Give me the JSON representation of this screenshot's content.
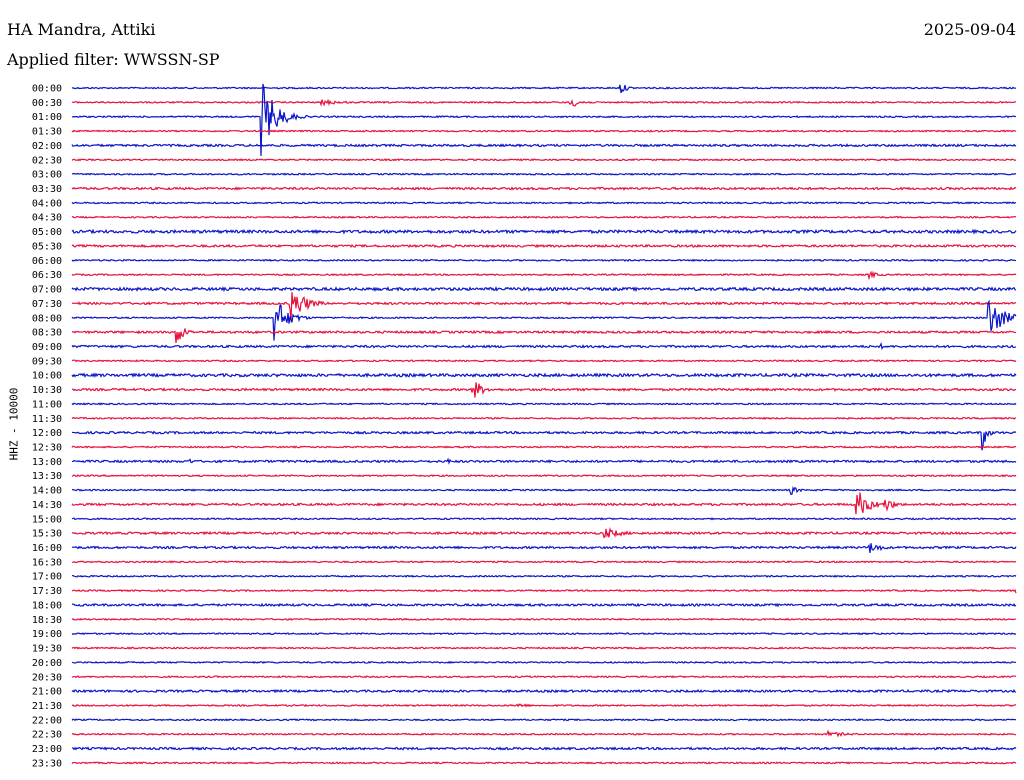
{
  "header": {
    "station": "HA Mandra, Attiki",
    "date": "2025-09-04",
    "filter": "Applied filter: WWSSN-SP"
  },
  "channel_label": "HHZ - 10000",
  "chart_data": {
    "type": "line",
    "title": "",
    "xlabel": "",
    "ylabel": "HHZ - 10000",
    "grid": false,
    "legend": "none",
    "row_labels": [
      "00:00",
      "00:30",
      "01:00",
      "01:30",
      "02:00",
      "02:30",
      "03:00",
      "03:30",
      "04:00",
      "04:30",
      "05:00",
      "05:30",
      "06:00",
      "06:30",
      "07:00",
      "07:30",
      "08:00",
      "08:30",
      "09:00",
      "09:30",
      "10:00",
      "10:30",
      "11:00",
      "11:30",
      "12:00",
      "12:30",
      "13:00",
      "13:30",
      "14:00",
      "14:30",
      "15:00",
      "15:30",
      "16:00",
      "16:30",
      "17:00",
      "17:30",
      "18:00",
      "18:30",
      "19:00",
      "19:30",
      "20:00",
      "20:30",
      "21:00",
      "21:30",
      "22:00",
      "22:30",
      "23:00",
      "23:30"
    ],
    "row_minutes": 30,
    "series_colors": [
      "#0a14c8",
      "#e8103c"
    ],
    "noise_level": [
      1,
      1,
      0,
      0,
      2,
      1,
      0,
      2,
      1,
      1,
      3,
      2,
      1,
      1,
      3,
      2,
      1,
      2,
      2,
      1,
      3,
      2,
      1,
      1,
      2,
      1,
      2,
      1,
      1,
      2,
      1,
      2,
      2,
      1,
      1,
      1,
      2,
      1,
      1,
      1,
      1,
      1,
      2,
      1,
      1,
      1,
      2,
      1
    ],
    "events": [
      {
        "row": 0,
        "minute": 17.4,
        "amplitude": 8,
        "duration_min": 0.4
      },
      {
        "row": 1,
        "minute": 7.9,
        "amplitude": 3,
        "duration_min": 1.6
      },
      {
        "row": 1,
        "minute": 15.8,
        "amplitude": 6,
        "duration_min": 0.8
      },
      {
        "row": 2,
        "minute": 6.0,
        "amplitude": 40,
        "duration_min": 0.9
      },
      {
        "row": 16,
        "minute": 6.4,
        "amplitude": 26,
        "duration_min": 0.8
      },
      {
        "row": 15,
        "minute": 6.9,
        "amplitude": 22,
        "duration_min": 0.9
      },
      {
        "row": 17,
        "minute": 3.3,
        "amplitude": 15,
        "duration_min": 0.5
      },
      {
        "row": 13,
        "minute": 25.3,
        "amplitude": 4,
        "duration_min": 0.7
      },
      {
        "row": 16,
        "minute": 29.1,
        "amplitude": 25,
        "duration_min": 0.9
      },
      {
        "row": 18,
        "minute": 25.7,
        "amplitude": 3,
        "duration_min": 0.3
      },
      {
        "row": 21,
        "minute": 12.7,
        "amplitude": 14,
        "duration_min": 0.6
      },
      {
        "row": 24,
        "minute": 28.9,
        "amplitude": 24,
        "duration_min": 0.3
      },
      {
        "row": 26,
        "minute": 3.7,
        "amplitude": 4,
        "duration_min": 0.3
      },
      {
        "row": 26,
        "minute": 11.9,
        "amplitude": 4,
        "duration_min": 0.3
      },
      {
        "row": 28,
        "minute": 22.8,
        "amplitude": 6,
        "duration_min": 0.5
      },
      {
        "row": 29,
        "minute": 24.9,
        "amplitude": 18,
        "duration_min": 0.8
      },
      {
        "row": 29,
        "minute": 25.8,
        "amplitude": 9,
        "duration_min": 0.6
      },
      {
        "row": 31,
        "minute": 16.9,
        "amplitude": 6,
        "duration_min": 1.2
      },
      {
        "row": 32,
        "minute": 25.3,
        "amplitude": 7,
        "duration_min": 0.8
      },
      {
        "row": 35,
        "minute": 30.0,
        "amplitude": 3,
        "duration_min": 0.8
      },
      {
        "row": 43,
        "minute": 14.1,
        "amplitude": 3,
        "duration_min": 0.8
      },
      {
        "row": 45,
        "minute": 24.0,
        "amplitude": 3,
        "duration_min": 1.4
      }
    ]
  }
}
